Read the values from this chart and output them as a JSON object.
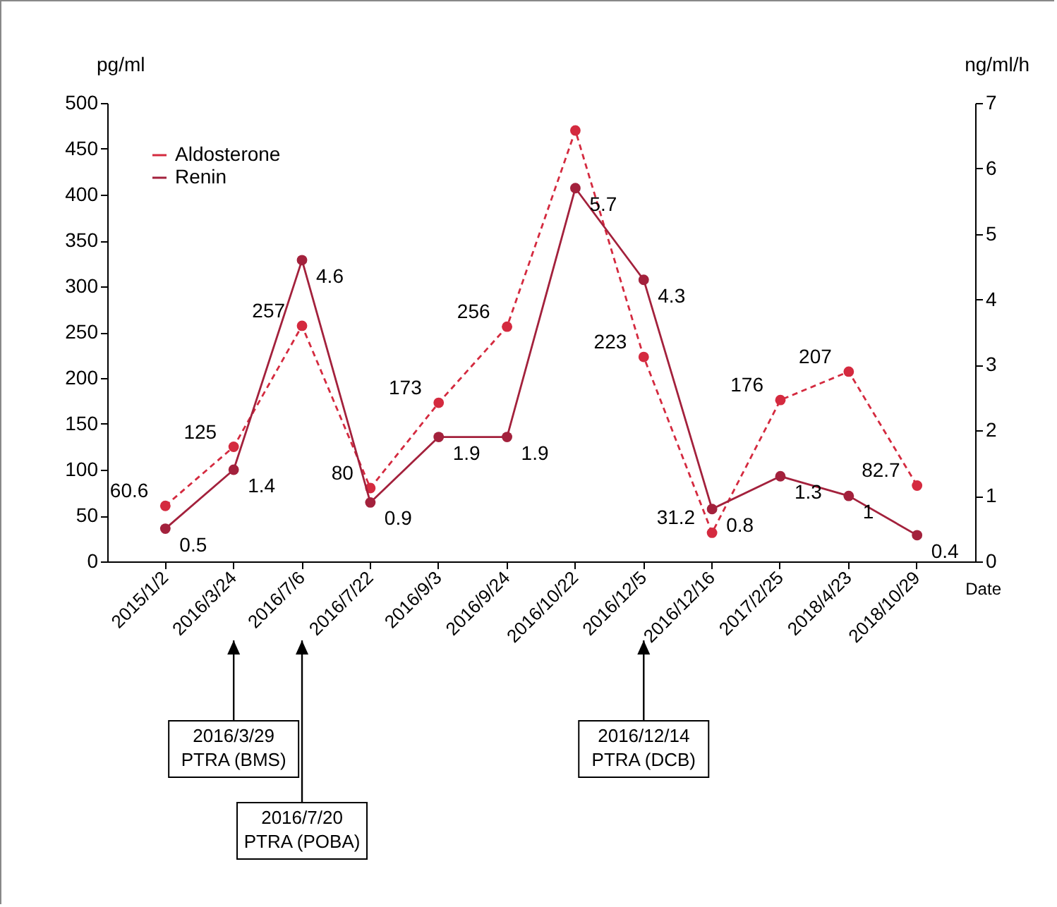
{
  "chart_data": {
    "type": "line",
    "categories": [
      "2015/1/2",
      "2016/3/24",
      "2016/7/6",
      "2016/7/22",
      "2016/9/3",
      "2016/9/24",
      "2016/10/22",
      "2016/12/5",
      "2016/12/16",
      "2017/2/25",
      "2018/4/23",
      "2018/10/29"
    ],
    "xlabel": "Date",
    "ylabel": "pg/ml",
    "y2label": "ng/ml/h",
    "series": [
      {
        "name": "Aldosterone",
        "color": "#d42a3f",
        "line_style": "dashed",
        "values": [
          60.6,
          125,
          257,
          80,
          173,
          256,
          470,
          223,
          31.2,
          176,
          207,
          82.7
        ],
        "value_labels": [
          "60.6",
          "125",
          "257",
          "80",
          "173",
          "256",
          null,
          "223",
          "31.2",
          "176",
          "207",
          "82.7"
        ]
      },
      {
        "name": "Renin",
        "color": "#a3213c",
        "line_style": "solid",
        "axis": "y2",
        "values": [
          0.5,
          1.4,
          4.6,
          0.9,
          1.9,
          1.9,
          5.7,
          4.3,
          0.8,
          1.3,
          1,
          0.4
        ],
        "value_labels": [
          "0.5",
          "1.4",
          "4.6",
          "0.9",
          "1.9",
          "1.9",
          "5.7",
          "4.3",
          "0.8",
          "1.3",
          "1",
          "0.4"
        ]
      }
    ],
    "ylim": [
      0,
      500
    ],
    "yticks": [
      0,
      50,
      100,
      150,
      200,
      250,
      300,
      350,
      400,
      450,
      500
    ],
    "y2lim": [
      0,
      7
    ],
    "y2ticks": [
      0,
      1,
      2,
      3,
      4,
      5,
      6,
      7
    ],
    "marker": "circle",
    "legend": "top left",
    "grid": false,
    "annotations": [
      {
        "text": "2016/3/29 PTRA (BMS)",
        "x": "2016/3/24"
      },
      {
        "text": "2016/7/20 PTRA (POBA)",
        "x": "2016/7/6"
      },
      {
        "text": "2016/12/14 PTRA (DCB)",
        "x": "2016/12/5"
      }
    ]
  }
}
